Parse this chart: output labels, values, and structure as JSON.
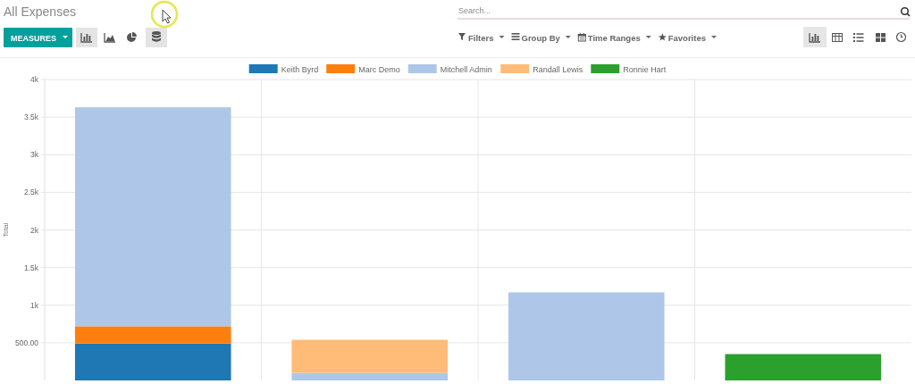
{
  "chart_data": {
    "type": "bar",
    "title": "All Expenses",
    "ylabel": "Total",
    "categories": [
      null,
      null,
      null,
      null
    ],
    "stacked": true,
    "series": [
      {
        "name": "Keith Byrd",
        "color": "#1f77b4",
        "values": [
          490,
          null,
          null,
          null
        ]
      },
      {
        "name": "Marc Demo",
        "color": "#ff7f0e",
        "values": [
          230,
          null,
          null,
          null
        ]
      },
      {
        "name": "Mitchell Admin",
        "color": "#aec7e8",
        "values": [
          2910,
          100,
          1170,
          null
        ]
      },
      {
        "name": "Randall Lewis",
        "color": "#ffbb78",
        "values": [
          null,
          440,
          null,
          null
        ]
      },
      {
        "name": "Ronnie Hart",
        "color": "#2ca02c",
        "values": [
          null,
          null,
          null,
          350
        ]
      }
    ],
    "ylim": [
      0,
      4000
    ],
    "yticks": [
      {
        "value": 500,
        "label": "500.00"
      },
      {
        "value": 1000,
        "label": "1k"
      },
      {
        "value": 1500,
        "label": "1.5k"
      },
      {
        "value": 2000,
        "label": "2k"
      },
      {
        "value": 2500,
        "label": "2.5k"
      },
      {
        "value": 3000,
        "label": "3k"
      },
      {
        "value": 3500,
        "label": "3.5k"
      },
      {
        "value": 4000,
        "label": "4k"
      }
    ],
    "grid": true,
    "legend": "top",
    "tick_labels": "y",
    "annotations": [
      "MEASURES",
      "Search...",
      "Filters",
      "Group By",
      "Time Ranges",
      "Favorites"
    ]
  }
}
